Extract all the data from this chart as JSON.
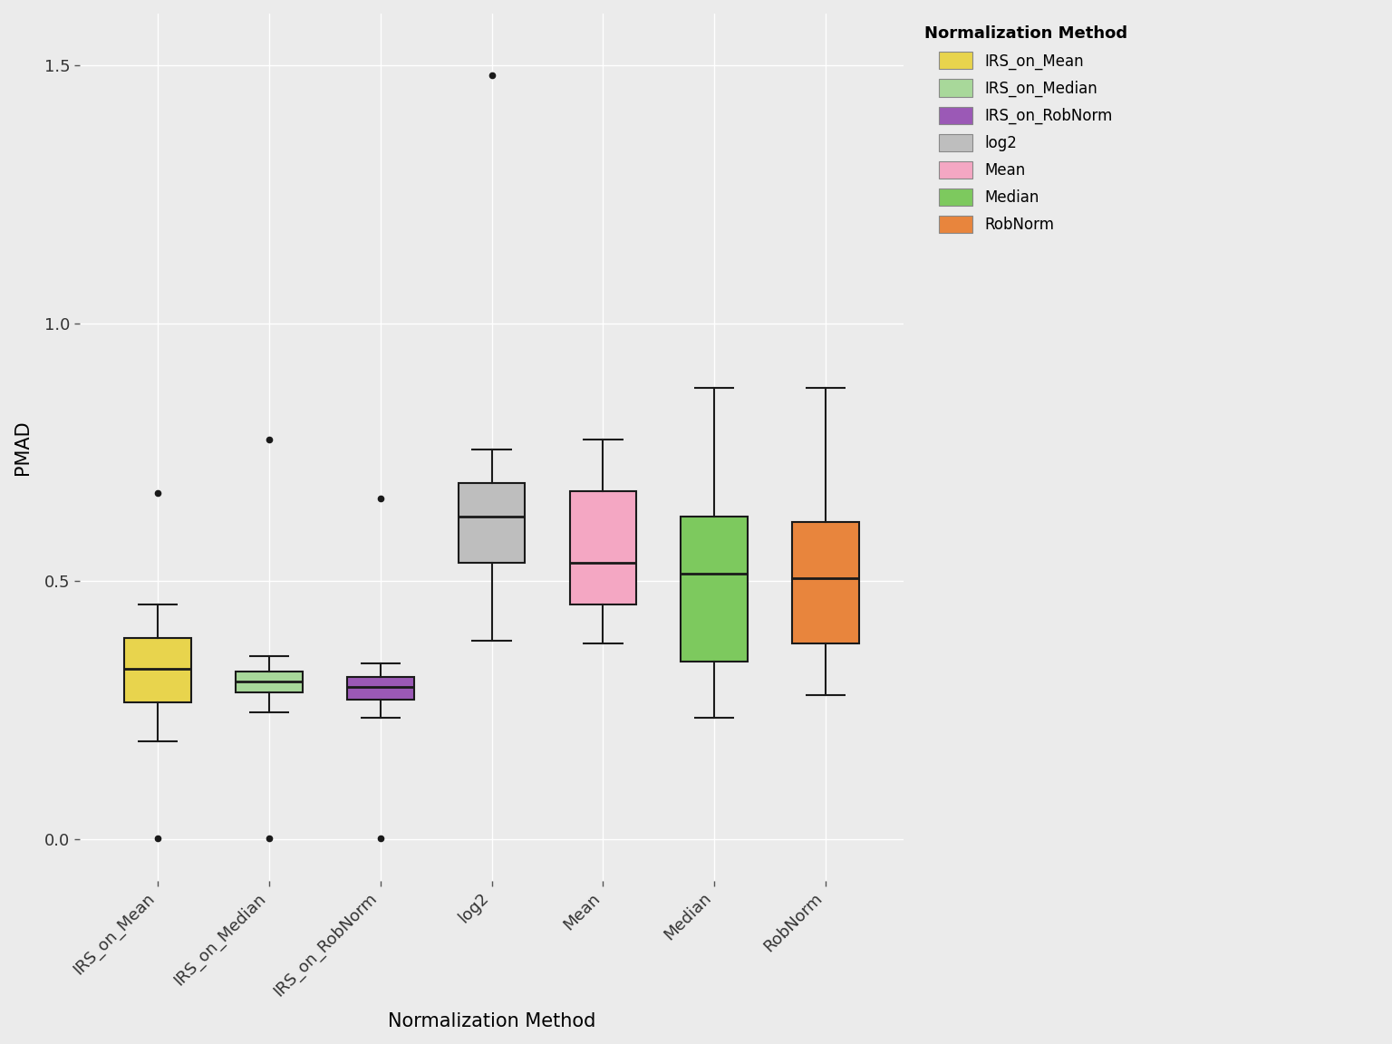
{
  "categories": [
    "IRS_on_Mean",
    "IRS_on_Median",
    "IRS_on_RobNorm",
    "log2",
    "Mean",
    "Median",
    "RobNorm"
  ],
  "colors": {
    "IRS_on_Mean": "#E8D44D",
    "IRS_on_Median": "#A8D89A",
    "IRS_on_RobNorm": "#9B59B6",
    "log2": "#BEBEBE",
    "Mean": "#F4A7C3",
    "Median": "#7DC95E",
    "RobNorm": "#E8853D"
  },
  "box_data": {
    "IRS_on_Mean": {
      "q1": 0.265,
      "median": 0.33,
      "q3": 0.39,
      "whisker_low": 0.19,
      "whisker_high": 0.455,
      "outliers": [
        0.001,
        0.67
      ]
    },
    "IRS_on_Median": {
      "q1": 0.285,
      "median": 0.305,
      "q3": 0.325,
      "whisker_low": 0.245,
      "whisker_high": 0.355,
      "outliers": [
        0.001,
        0.775
      ]
    },
    "IRS_on_RobNorm": {
      "q1": 0.27,
      "median": 0.295,
      "q3": 0.315,
      "whisker_low": 0.235,
      "whisker_high": 0.34,
      "outliers": [
        0.001,
        0.66
      ]
    },
    "log2": {
      "q1": 0.535,
      "median": 0.625,
      "q3": 0.69,
      "whisker_low": 0.385,
      "whisker_high": 0.755,
      "outliers": [
        1.48
      ]
    },
    "Mean": {
      "q1": 0.455,
      "median": 0.535,
      "q3": 0.675,
      "whisker_low": 0.38,
      "whisker_high": 0.775,
      "outliers": []
    },
    "Median": {
      "q1": 0.345,
      "median": 0.515,
      "q3": 0.625,
      "whisker_low": 0.235,
      "whisker_high": 0.875,
      "outliers": []
    },
    "RobNorm": {
      "q1": 0.38,
      "median": 0.505,
      "q3": 0.615,
      "whisker_low": 0.28,
      "whisker_high": 0.875,
      "outliers": []
    }
  },
  "xlabel": "Normalization Method",
  "ylabel": "PMAD",
  "legend_title": "Normalization Method",
  "ylim": [
    -0.08,
    1.6
  ],
  "yticks": [
    0.0,
    0.5,
    1.0,
    1.5
  ],
  "ytick_labels": [
    "0.0",
    "0.5",
    "1.0",
    "1.5"
  ],
  "panel_background": "#EBEBEB",
  "figure_background": "#EBEBEB",
  "grid_color": "#FFFFFF",
  "box_width": 0.6,
  "linewidth": 1.5,
  "legend_patch_colors": {
    "IRS_on_Mean": "#E8D44D",
    "IRS_on_Median": "#A8D89A",
    "IRS_on_RobNorm": "#9B59B6",
    "log2": "#BEBEBE",
    "Mean": "#F4A7C3",
    "Median": "#7DC95E",
    "RobNorm": "#E8853D"
  }
}
